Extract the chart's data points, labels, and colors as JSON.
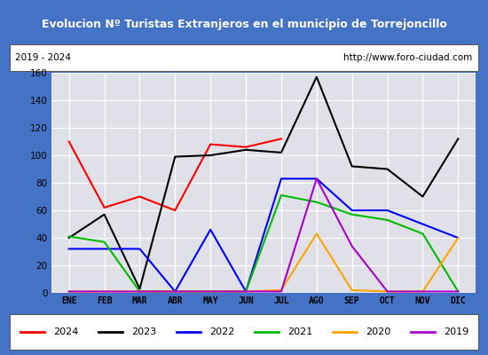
{
  "title": "Evolucion Nº Turistas Extranjeros en el municipio de Torrejoncillo",
  "subtitle_left": "2019 - 2024",
  "subtitle_right": "http://www.foro-ciudad.com",
  "months": [
    "ENE",
    "FEB",
    "MAR",
    "ABR",
    "MAY",
    "JUN",
    "JUL",
    "AGO",
    "SEP",
    "OCT",
    "NOV",
    "DIC"
  ],
  "series": {
    "2024": [
      110,
      62,
      70,
      60,
      108,
      106,
      112,
      null,
      null,
      null,
      null,
      null
    ],
    "2023": [
      40,
      57,
      3,
      99,
      100,
      104,
      102,
      157,
      92,
      90,
      70,
      112
    ],
    "2022": [
      32,
      32,
      32,
      1,
      46,
      1,
      83,
      83,
      60,
      60,
      50,
      40
    ],
    "2021": [
      41,
      37,
      1,
      1,
      1,
      1,
      71,
      66,
      57,
      53,
      43,
      1
    ],
    "2020": [
      1,
      1,
      1,
      1,
      1,
      1,
      2,
      43,
      2,
      1,
      1,
      40
    ],
    "2019": [
      1,
      1,
      1,
      1,
      1,
      1,
      1,
      83,
      34,
      1,
      1,
      1
    ]
  },
  "colors": {
    "2024": "#ff0000",
    "2023": "#000000",
    "2022": "#0000ff",
    "2021": "#00bb00",
    "2020": "#ffa500",
    "2019": "#aa00cc"
  },
  "ylim": [
    0,
    160
  ],
  "yticks": [
    0,
    20,
    40,
    60,
    80,
    100,
    120,
    140,
    160
  ],
  "title_bg": "#4472c4",
  "title_color": "#ffffff",
  "plot_bg": "#e0e0e8",
  "grid_color": "#ffffff",
  "fig_bg": "#4472c4"
}
